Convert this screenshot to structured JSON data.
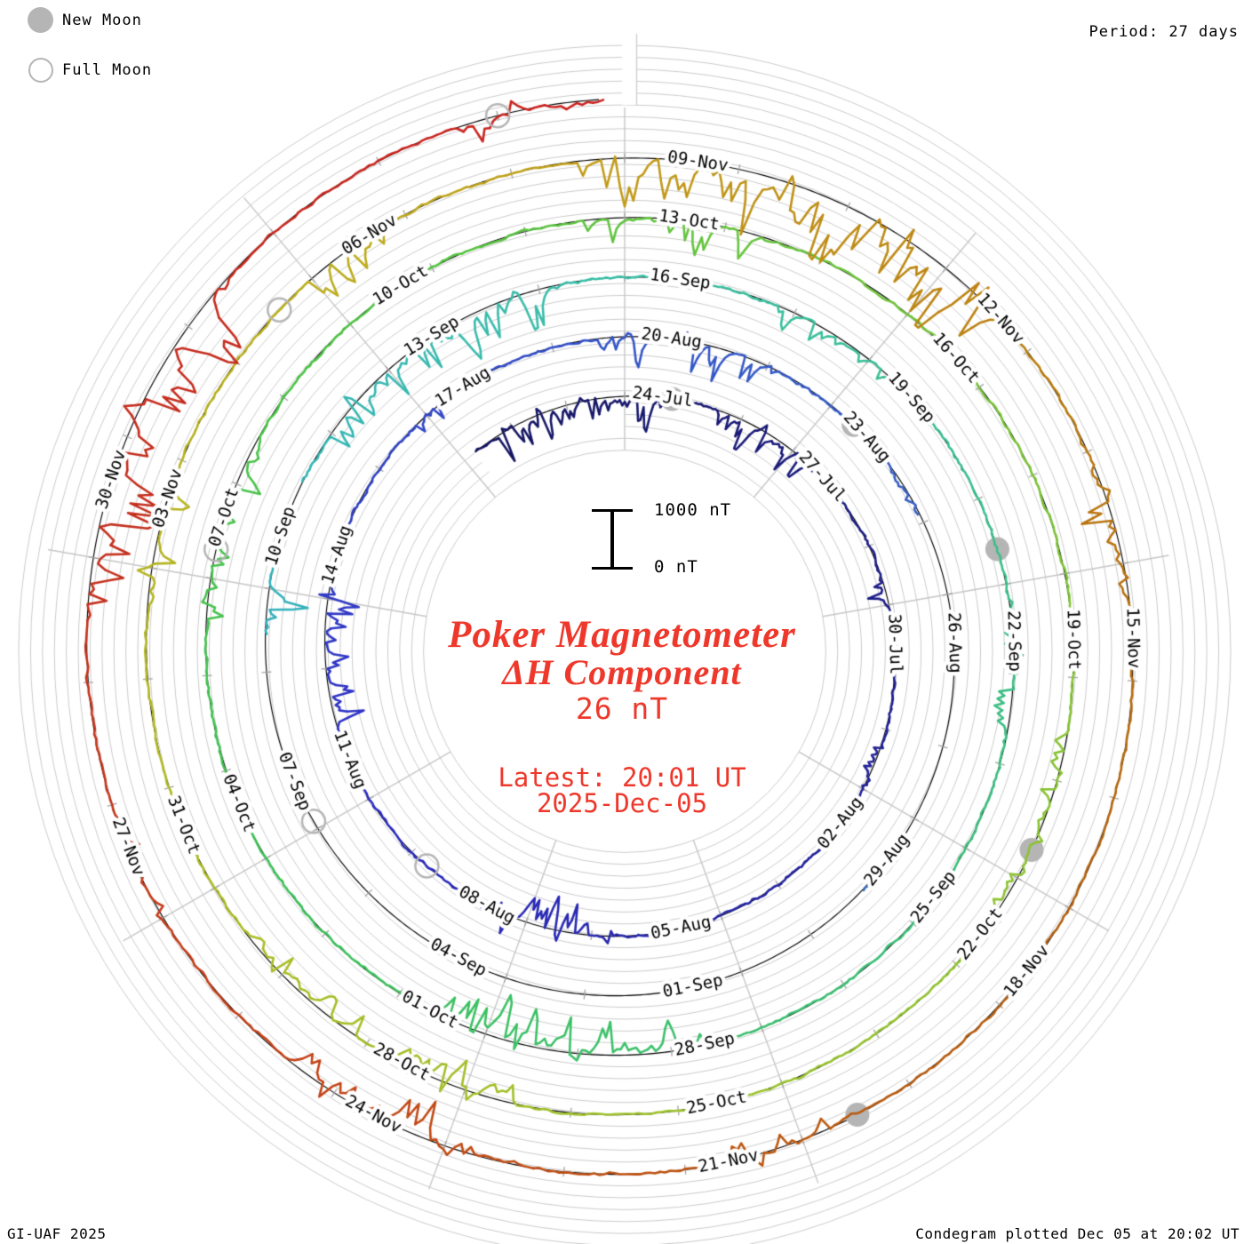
{
  "legend": {
    "new_moon_label": "New Moon",
    "full_moon_label": "Full Moon"
  },
  "header": {
    "period_label": "Period: 27 days"
  },
  "footer": {
    "left": "GI-UAF 2025",
    "right": "Condegram plotted Dec 05 at 20:02 UT"
  },
  "center": {
    "title_line1": "Poker Magnetometer",
    "title_line2": "ΔH Component",
    "current_value": "26 nT",
    "latest_line1": "Latest: 20:01 UT",
    "latest_line2": "2025-Dec-05"
  },
  "scale_bar": {
    "top_label": "1000 nT",
    "bottom_label": "0 nT"
  },
  "colors": {
    "annotation_red": "#ee382b",
    "moon_gray": "#b5b5b5",
    "grid_gray": "#cbcbcb",
    "spoke_gray": "#c6c6c6",
    "tick_gray": "#a3a3a3",
    "baseline_black": "#000000"
  },
  "chart_data": {
    "type": "spiral_polar_line (condegram)",
    "title": "Poker Magnetometer ΔH Component",
    "station": "Poker",
    "component": "ΔH",
    "latest_value_nT": 26,
    "latest_time": "2025-Dec-05 20:01 UT",
    "period_days": 27,
    "epoch_note": "day 0 = 2025-Jul-24 00:00 UT; angle = (day mod 27)/27 * 360deg clockwise from top; radius grows one ring (1000 nT) per 27-day turn",
    "start_day": -2.75,
    "end_day": 134.835,
    "data_start": "2025-Jul-21 ~06 UT",
    "data_end": "2025-Dec-05 20:01 UT",
    "scale": {
      "ring_spacing_nT": 1000,
      "grid_step_nT": 200
    },
    "ring_labels": [
      {
        "text": "24-Jul",
        "day": 0
      },
      {
        "text": "27-Jul",
        "day": 3
      },
      {
        "text": "30-Jul",
        "day": 6
      },
      {
        "text": "02-Aug",
        "day": 9
      },
      {
        "text": "05-Aug",
        "day": 12
      },
      {
        "text": "08-Aug",
        "day": 15
      },
      {
        "text": "11-Aug",
        "day": 18
      },
      {
        "text": "14-Aug",
        "day": 21
      },
      {
        "text": "17-Aug",
        "day": 24
      },
      {
        "text": "20-Aug",
        "day": 27
      },
      {
        "text": "23-Aug",
        "day": 30
      },
      {
        "text": "26-Aug",
        "day": 33
      },
      {
        "text": "29-Aug",
        "day": 36
      },
      {
        "text": "01-Sep",
        "day": 39
      },
      {
        "text": "04-Sep",
        "day": 42
      },
      {
        "text": "07-Sep",
        "day": 45
      },
      {
        "text": "10-Sep",
        "day": 48
      },
      {
        "text": "13-Sep",
        "day": 51
      },
      {
        "text": "16-Sep",
        "day": 54
      },
      {
        "text": "19-Sep",
        "day": 57
      },
      {
        "text": "22-Sep",
        "day": 60
      },
      {
        "text": "25-Sep",
        "day": 63
      },
      {
        "text": "28-Sep",
        "day": 66
      },
      {
        "text": "01-Oct",
        "day": 69
      },
      {
        "text": "04-Oct",
        "day": 72
      },
      {
        "text": "07-Oct",
        "day": 75
      },
      {
        "text": "10-Oct",
        "day": 78
      },
      {
        "text": "13-Oct",
        "day": 81
      },
      {
        "text": "16-Oct",
        "day": 84
      },
      {
        "text": "19-Oct",
        "day": 87
      },
      {
        "text": "22-Oct",
        "day": 90
      },
      {
        "text": "25-Oct",
        "day": 93
      },
      {
        "text": "28-Oct",
        "day": 96
      },
      {
        "text": "31-Oct",
        "day": 99
      },
      {
        "text": "03-Nov",
        "day": 102
      },
      {
        "text": "06-Nov",
        "day": 105
      },
      {
        "text": "09-Nov",
        "day": 108
      },
      {
        "text": "12-Nov",
        "day": 111
      },
      {
        "text": "15-Nov",
        "day": 114
      },
      {
        "text": "18-Nov",
        "day": 117
      },
      {
        "text": "21-Nov",
        "day": 120
      },
      {
        "text": "24-Nov",
        "day": 123
      },
      {
        "text": "27-Nov",
        "day": 126
      },
      {
        "text": "30-Nov",
        "day": 129
      }
    ],
    "new_moons": {
      "dates": [
        "2025-07-24",
        "2025-08-23",
        "2025-09-21",
        "2025-10-21",
        "2025-11-20"
      ],
      "days": [
        0.8,
        30.4,
        59.6,
        89.7,
        119.5
      ]
    },
    "full_moons": {
      "dates": [
        "2025-08-09",
        "2025-09-07",
        "2025-10-07",
        "2025-11-05",
        "2025-12-04"
      ],
      "days": [
        16.7,
        45.1,
        75.3,
        104.6,
        134.0
      ]
    },
    "data_gap_days": [
      [
        31.9,
        36.3
      ],
      [
        37.15,
        47.45
      ],
      [
        48.45,
        49.3
      ]
    ],
    "data_gap_note": "no trace ~24-Aug to 09-Sep except short segment ~29-30 Aug and blip ~10-Sep",
    "activity_periods": [
      {
        "s": -2.6,
        "e": 0.9,
        "i": 0.5
      },
      {
        "s": 1.5,
        "e": 3.8,
        "i": 0.45
      },
      {
        "s": 5.5,
        "e": 6.6,
        "i": 0.3
      },
      {
        "s": 8.0,
        "e": 9.6,
        "i": 0.32
      },
      {
        "s": 13.5,
        "e": 16.2,
        "i": 0.52
      },
      {
        "s": 19.0,
        "e": 21.5,
        "i": 0.45
      },
      {
        "s": 23.4,
        "e": 24.6,
        "i": 0.35
      },
      {
        "s": 26.5,
        "e": 29.2,
        "i": 0.5
      },
      {
        "s": 30.8,
        "e": 31.9,
        "i": 0.32
      },
      {
        "s": 47.5,
        "e": 48.4,
        "i": 0.55
      },
      {
        "s": 49.8,
        "e": 53.6,
        "i": 0.55
      },
      {
        "s": 55.5,
        "e": 57.5,
        "i": 0.35
      },
      {
        "s": 60.0,
        "e": 62.0,
        "i": 0.3
      },
      {
        "s": 66.5,
        "e": 69.8,
        "i": 0.75
      },
      {
        "s": 74.4,
        "e": 76.5,
        "i": 0.42
      },
      {
        "s": 80.5,
        "e": 82.6,
        "i": 0.5
      },
      {
        "s": 88.4,
        "e": 90.5,
        "i": 0.35
      },
      {
        "s": 95.4,
        "e": 98.5,
        "i": 0.5
      },
      {
        "s": 101.5,
        "e": 103.1,
        "i": 0.42
      },
      {
        "s": 104.7,
        "e": 106.1,
        "i": 0.48
      },
      {
        "s": 107.5,
        "e": 111.9,
        "i": 0.95
      },
      {
        "s": 112.9,
        "e": 114.6,
        "i": 0.45
      },
      {
        "s": 119.4,
        "e": 121.0,
        "i": 0.38
      },
      {
        "s": 122.4,
        "e": 124.6,
        "i": 0.55
      },
      {
        "s": 125.9,
        "e": 127.1,
        "i": 0.36
      },
      {
        "s": 128.4,
        "e": 131.6,
        "i": 0.82
      },
      {
        "s": 133.4,
        "e": 134.84,
        "i": 0.42
      }
    ],
    "colormap": [
      {
        "day": -2.8,
        "color": "#151560"
      },
      {
        "day": 6,
        "color": "#1f1f8a"
      },
      {
        "day": 18,
        "color": "#2d2dc4"
      },
      {
        "day": 27,
        "color": "#3555c8"
      },
      {
        "day": 38,
        "color": "#3a6ec0"
      },
      {
        "day": 48,
        "color": "#35b2bb"
      },
      {
        "day": 54,
        "color": "#3bbfa6"
      },
      {
        "day": 63,
        "color": "#3cbf7c"
      },
      {
        "day": 72,
        "color": "#3ec258"
      },
      {
        "day": 78,
        "color": "#4ec443"
      },
      {
        "day": 84,
        "color": "#72c43c"
      },
      {
        "day": 93,
        "color": "#9ac32f"
      },
      {
        "day": 100,
        "color": "#b0bb24"
      },
      {
        "day": 105,
        "color": "#bcae1e"
      },
      {
        "day": 108,
        "color": "#c29c1b"
      },
      {
        "day": 111,
        "color": "#bd8613"
      },
      {
        "day": 114,
        "color": "#b97311"
      },
      {
        "day": 117,
        "color": "#b36110"
      },
      {
        "day": 120,
        "color": "#bb5a11"
      },
      {
        "day": 123,
        "color": "#c24b16"
      },
      {
        "day": 126,
        "color": "#c53d1b"
      },
      {
        "day": 129,
        "color": "#c4311f"
      },
      {
        "day": 134.85,
        "color": "#cb2320"
      }
    ]
  }
}
